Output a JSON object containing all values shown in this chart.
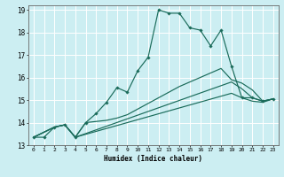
{
  "xlabel": "Humidex (Indice chaleur)",
  "background_color": "#cceef2",
  "grid_color": "#ffffff",
  "line_color": "#1a6b5a",
  "xlim": [
    -0.5,
    23.5
  ],
  "ylim": [
    13,
    19.2
  ],
  "xticks": [
    0,
    1,
    2,
    3,
    4,
    5,
    6,
    7,
    8,
    9,
    10,
    11,
    12,
    13,
    14,
    15,
    16,
    17,
    18,
    19,
    20,
    21,
    22,
    23
  ],
  "yticks": [
    13,
    14,
    15,
    16,
    17,
    18,
    19
  ],
  "line1_x": [
    0,
    1,
    2,
    3,
    4,
    5,
    6,
    7,
    8,
    9,
    10,
    11,
    12,
    13,
    14,
    15,
    16,
    17,
    18,
    19,
    20,
    21,
    22,
    23
  ],
  "line1_y": [
    13.35,
    13.35,
    13.8,
    13.9,
    13.35,
    14.0,
    14.4,
    14.9,
    15.55,
    15.35,
    16.3,
    16.9,
    19.0,
    18.85,
    18.85,
    18.2,
    18.1,
    17.4,
    18.1,
    16.5,
    15.1,
    15.1,
    14.95,
    15.05
  ],
  "line2_x": [
    0,
    2,
    3,
    4,
    5,
    6,
    7,
    8,
    9,
    10,
    11,
    12,
    13,
    14,
    15,
    16,
    17,
    18,
    19,
    20,
    21,
    22,
    23
  ],
  "line2_y": [
    13.35,
    13.8,
    13.9,
    13.35,
    14.0,
    14.05,
    14.1,
    14.2,
    14.35,
    14.6,
    14.85,
    15.1,
    15.35,
    15.6,
    15.8,
    16.0,
    16.2,
    16.4,
    15.9,
    15.75,
    15.45,
    14.95,
    15.05
  ],
  "line3_x": [
    0,
    2,
    3,
    4,
    19,
    20,
    21,
    22,
    23
  ],
  "line3_y": [
    13.35,
    13.8,
    13.9,
    13.35,
    15.8,
    15.5,
    15.1,
    14.95,
    15.05
  ],
  "line4_x": [
    0,
    2,
    3,
    4,
    19,
    20,
    21,
    22,
    23
  ],
  "line4_y": [
    13.35,
    13.8,
    13.9,
    13.35,
    15.3,
    15.1,
    14.95,
    14.9,
    15.05
  ]
}
